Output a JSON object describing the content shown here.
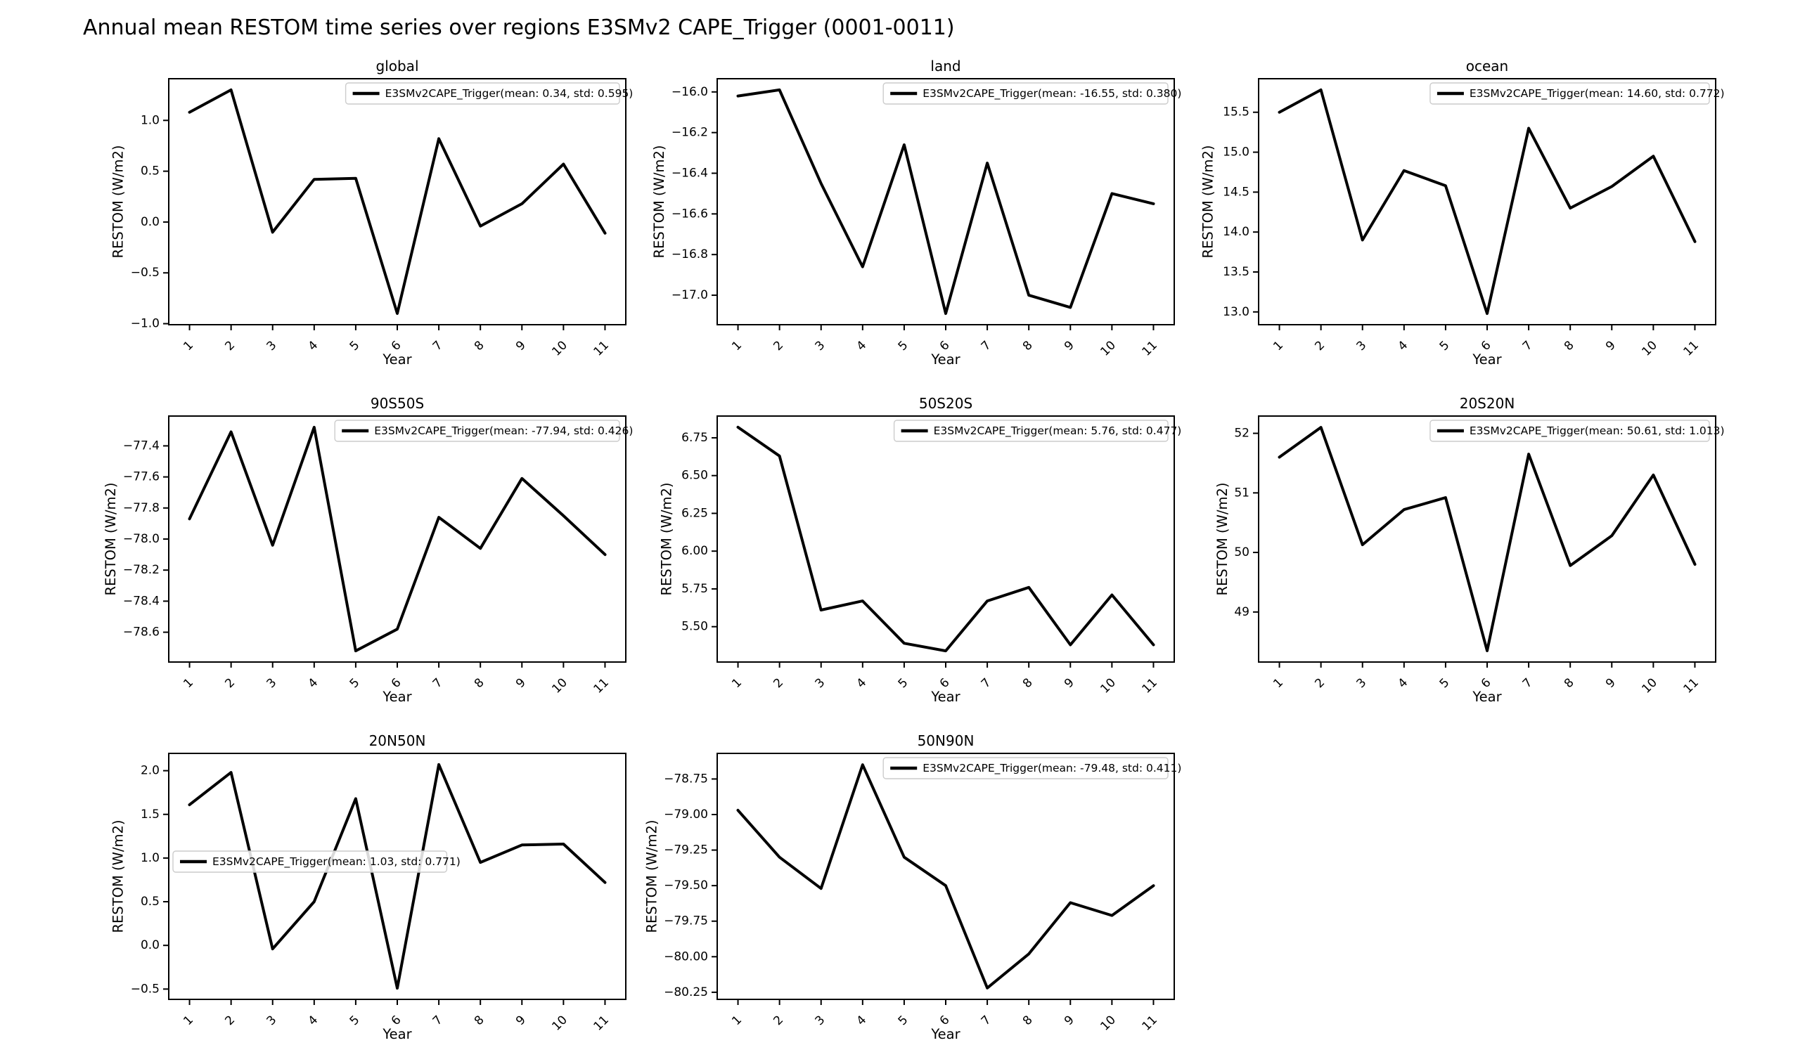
{
  "page": {
    "background_color": "#ffffff",
    "line_color": "#000000",
    "legend_border_color": "#cccccc"
  },
  "chart_data": {
    "type": "line",
    "suptitle": "Annual mean RESTOM time series over regions E3SMv2 CAPE_Trigger (0001-0011)",
    "xlabel": "Year",
    "ylabel": "RESTOM (W/m2)",
    "x": [
      1,
      2,
      3,
      4,
      5,
      6,
      7,
      8,
      9,
      10,
      11
    ],
    "xlim": [
      0.5,
      11.5
    ],
    "grid": "off",
    "series_name": "E3SMv2CAPE_Trigger",
    "charts": [
      {
        "title": "global",
        "legend": "E3SMv2CAPE_Trigger(mean: 0.34, std: 0.595)",
        "legend_pos": "upper right",
        "row": 0,
        "col": 0,
        "values": [
          1.08,
          1.3,
          -0.1,
          0.42,
          0.43,
          -0.9,
          0.82,
          -0.04,
          0.18,
          0.57,
          -0.11
        ],
        "ylim": [
          -1.01,
          1.41
        ],
        "yticks": [
          1.0,
          0.5,
          0.0,
          -0.5,
          -1.0
        ],
        "ytick_decimals": 1
      },
      {
        "title": "land",
        "legend": "E3SMv2CAPE_Trigger(mean: -16.55, std: 0.380)",
        "legend_pos": "upper right",
        "row": 0,
        "col": 1,
        "values": [
          -16.02,
          -15.99,
          -16.45,
          -16.86,
          -16.26,
          -17.09,
          -16.35,
          -17.0,
          -17.06,
          -16.5,
          -16.55
        ],
        "ylim": [
          -17.145,
          -15.935
        ],
        "yticks": [
          -16.0,
          -16.2,
          -16.4,
          -16.6,
          -16.8,
          -17.0
        ],
        "ytick_decimals": 1
      },
      {
        "title": "ocean",
        "legend": "E3SMv2CAPE_Trigger(mean: 14.60, std: 0.772)",
        "legend_pos": "upper right",
        "row": 0,
        "col": 2,
        "values": [
          15.5,
          15.78,
          13.9,
          14.77,
          14.58,
          12.98,
          15.3,
          14.3,
          14.57,
          14.95,
          13.88
        ],
        "ylim": [
          12.84,
          15.92
        ],
        "yticks": [
          15.5,
          15.0,
          14.5,
          14.0,
          13.5,
          13.0
        ],
        "ytick_decimals": 1
      },
      {
        "title": "90S50S",
        "legend": "E3SMv2CAPE_Trigger(mean: -77.94, std: 0.426)",
        "legend_pos": "upper right",
        "row": 1,
        "col": 0,
        "values": [
          -77.87,
          -77.31,
          -78.04,
          -77.28,
          -78.72,
          -78.58,
          -77.86,
          -78.06,
          -77.61,
          -77.85,
          -78.1
        ],
        "ylim": [
          -78.792,
          -77.208
        ],
        "yticks": [
          -77.4,
          -77.6,
          -77.8,
          -78.0,
          -78.2,
          -78.4,
          -78.6
        ],
        "ytick_decimals": 1
      },
      {
        "title": "50S20S",
        "legend": "E3SMv2CAPE_Trigger(mean: 5.76, std: 0.477)",
        "legend_pos": "upper right",
        "row": 1,
        "col": 1,
        "values": [
          6.82,
          6.63,
          5.61,
          5.67,
          5.39,
          5.34,
          5.67,
          5.76,
          5.38,
          5.71,
          5.38
        ],
        "ylim": [
          5.266,
          6.894
        ],
        "yticks": [
          6.75,
          6.5,
          6.25,
          6.0,
          5.75,
          5.5
        ],
        "ytick_decimals": 2
      },
      {
        "title": "20S20N",
        "legend": "E3SMv2CAPE_Trigger(mean: 50.61, std: 1.013)",
        "legend_pos": "upper right",
        "row": 1,
        "col": 2,
        "values": [
          51.6,
          52.1,
          50.13,
          50.72,
          50.92,
          48.35,
          51.65,
          49.78,
          50.28,
          51.3,
          49.8
        ],
        "ylim": [
          48.16,
          52.29
        ],
        "yticks": [
          52,
          51,
          50,
          49
        ],
        "ytick_decimals": 0
      },
      {
        "title": "20N50N",
        "legend": "E3SMv2CAPE_Trigger(mean: 1.03, std: 0.771)",
        "legend_pos": "center left",
        "row": 2,
        "col": 0,
        "values": [
          1.61,
          1.98,
          -0.04,
          0.5,
          1.68,
          -0.49,
          2.07,
          0.95,
          1.15,
          1.16,
          0.72
        ],
        "ylim": [
          -0.618,
          2.198
        ],
        "yticks": [
          2.0,
          1.5,
          1.0,
          0.5,
          0.0,
          -0.5
        ],
        "ytick_decimals": 1
      },
      {
        "title": "50N90N",
        "legend": "E3SMv2CAPE_Trigger(mean: -79.48, std: 0.411)",
        "legend_pos": "upper right",
        "row": 2,
        "col": 1,
        "values": [
          -78.97,
          -79.3,
          -79.52,
          -78.65,
          -79.3,
          -79.5,
          -80.22,
          -79.98,
          -79.62,
          -79.71,
          -79.5
        ],
        "ylim": [
          -80.3,
          -78.57
        ],
        "yticks": [
          -78.75,
          -79.0,
          -79.25,
          -79.5,
          -79.75,
          -80.0,
          -80.25
        ],
        "ytick_decimals": 2
      }
    ]
  }
}
